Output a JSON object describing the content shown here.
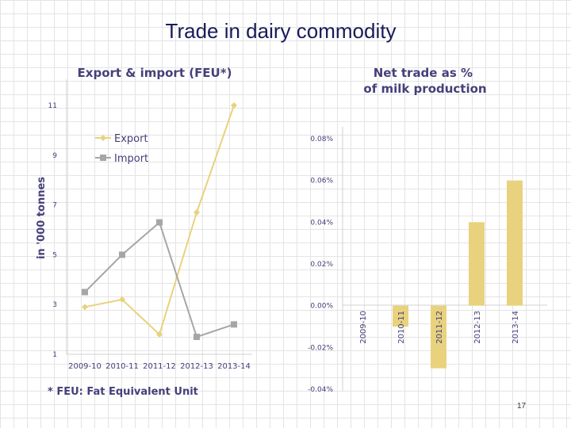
{
  "slide": {
    "title": "Trade in dairy commodity",
    "page_number": "17"
  },
  "chart_data": [
    {
      "type": "line",
      "title": "Export & import (FEU*)",
      "ylabel": "in '000 tonnes",
      "xlabel": "",
      "categories": [
        "2009-10",
        "2010-11",
        "2011-12",
        "2012-13",
        "2013-14"
      ],
      "series": [
        {
          "name": "Export",
          "values": [
            2.9,
            3.2,
            1.8,
            6.7,
            11.0
          ],
          "color": "#e8d27e",
          "marker": "diamond"
        },
        {
          "name": "Import",
          "values": [
            3.5,
            5.0,
            6.3,
            1.7,
            2.2
          ],
          "color": "#a6a6a6",
          "marker": "square"
        }
      ],
      "ylim": [
        1,
        11
      ],
      "yticks": [
        "1",
        "3",
        "5",
        "7",
        "9",
        "11"
      ],
      "legend": "upper-left",
      "footnote": "* FEU: Fat Equivalent Unit"
    },
    {
      "type": "bar",
      "title": "Net trade as % of milk production",
      "categories": [
        "2009-10",
        "2010-11",
        "2011-12",
        "2012-13",
        "2013-14"
      ],
      "values": [
        0.0,
        -0.01,
        -0.03,
        0.04,
        0.06
      ],
      "color": "#e8d27e",
      "ylim": [
        -0.04,
        0.08
      ],
      "yticks": [
        "0.08%",
        "0.06%",
        "0.04%",
        "0.02%",
        "0.00%",
        "-0.02%",
        "-0.04%"
      ]
    }
  ]
}
